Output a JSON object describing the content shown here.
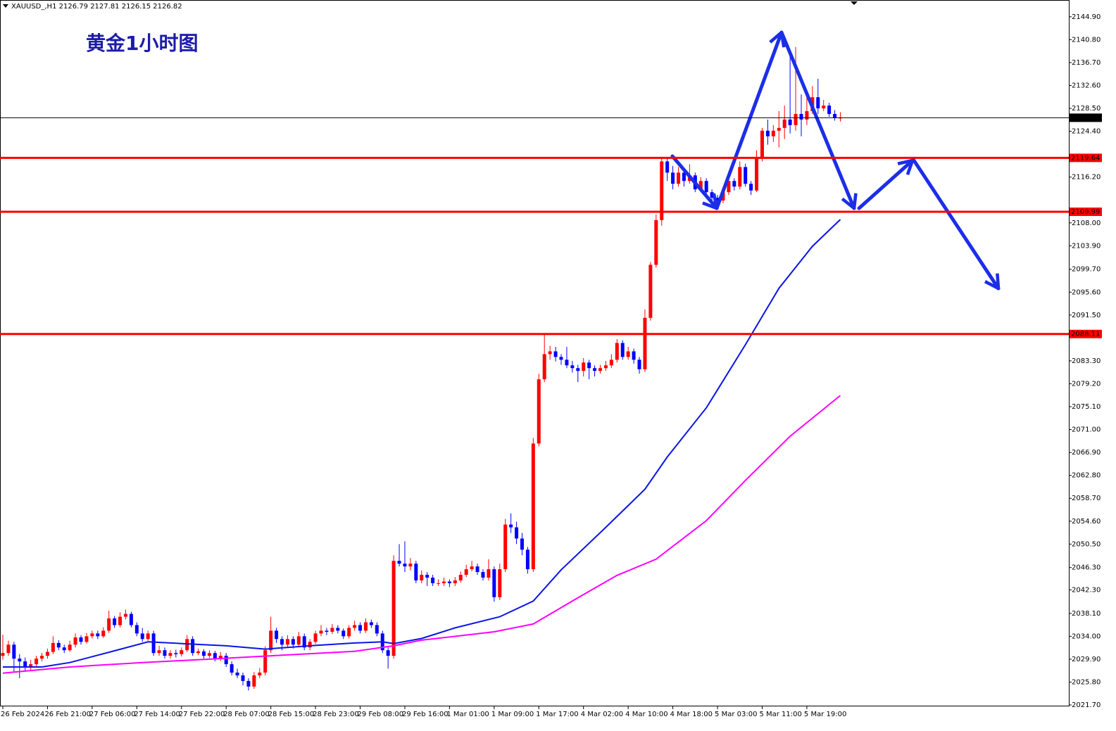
{
  "chart_data": {
    "type": "candlestick",
    "symbol": "XAUUSD_,H1",
    "title": "黄金1小时图",
    "up_color": "#ff0000",
    "down_color": "#0000ff",
    "grid": false,
    "ylim": [
      2021.45,
      2147.9
    ],
    "yticks": [
      {
        "value": 2144.9,
        "label": "2144.90"
      },
      {
        "value": 2140.8,
        "label": "2140.80"
      },
      {
        "value": 2136.7,
        "label": "2136.70"
      },
      {
        "value": 2132.6,
        "label": "2132.60"
      },
      {
        "value": 2128.5,
        "label": "2128.50"
      },
      {
        "value": 2124.4,
        "label": "2124.40"
      },
      {
        "value": 2116.2,
        "label": "2116.20"
      },
      {
        "value": 2108.0,
        "label": "2108.00"
      },
      {
        "value": 2103.9,
        "label": "2103.90"
      },
      {
        "value": 2099.7,
        "label": "2099.70"
      },
      {
        "value": 2095.6,
        "label": "2095.60"
      },
      {
        "value": 2091.5,
        "label": "2091.50"
      },
      {
        "value": 2083.3,
        "label": "2083.30"
      },
      {
        "value": 2079.2,
        "label": "2079.20"
      },
      {
        "value": 2075.1,
        "label": "2075.10"
      },
      {
        "value": 2071.0,
        "label": "2071.00"
      },
      {
        "value": 2066.9,
        "label": "2066.90"
      },
      {
        "value": 2062.8,
        "label": "2062.80"
      },
      {
        "value": 2058.7,
        "label": "2058.70"
      },
      {
        "value": 2054.6,
        "label": "2054.60"
      },
      {
        "value": 2050.5,
        "label": "2050.50"
      },
      {
        "value": 2046.3,
        "label": "2046.30"
      },
      {
        "value": 2042.3,
        "label": "2042.30"
      },
      {
        "value": 2038.1,
        "label": "2038.10"
      },
      {
        "value": 2034.0,
        "label": "2034.00"
      },
      {
        "value": 2029.9,
        "label": "2029.90"
      },
      {
        "value": 2025.8,
        "label": "2025.80"
      },
      {
        "value": 2021.7,
        "label": "2021.70"
      }
    ],
    "hlines": [
      {
        "value": 2126.82,
        "color": "#000000"
      },
      {
        "value": 2119.64,
        "color": "#ff0000"
      },
      {
        "value": 2109.99,
        "color": "#ff0000"
      },
      {
        "value": 2088.11,
        "color": "#ff0000"
      }
    ],
    "categories": [
      "26 Feb 2024",
      null,
      null,
      null,
      null,
      null,
      null,
      null,
      "26 Feb 21:00",
      null,
      null,
      null,
      null,
      null,
      null,
      null,
      "27 Feb 06:00",
      null,
      null,
      null,
      null,
      null,
      null,
      null,
      "27 Feb 14:00",
      null,
      null,
      null,
      null,
      null,
      null,
      null,
      "27 Feb 22:00",
      null,
      null,
      null,
      null,
      null,
      null,
      null,
      "28 Feb 07:00",
      null,
      null,
      null,
      null,
      null,
      null,
      null,
      "28 Feb 15:00",
      null,
      null,
      null,
      null,
      null,
      null,
      null,
      "28 Feb 23:00",
      null,
      null,
      null,
      null,
      null,
      null,
      null,
      "29 Feb 08:00",
      null,
      null,
      null,
      null,
      null,
      null,
      null,
      "29 Feb 16:00",
      null,
      null,
      null,
      null,
      null,
      null,
      null,
      "1 Mar 01:00",
      null,
      null,
      null,
      null,
      null,
      null,
      null,
      "1 Mar 09:00",
      null,
      null,
      null,
      null,
      null,
      null,
      null,
      "1 Mar 17:00",
      null,
      null,
      null,
      null,
      null,
      null,
      null,
      "4 Mar 02:00",
      null,
      null,
      null,
      null,
      null,
      null,
      null,
      "4 Mar 10:00",
      null,
      null,
      null,
      null,
      null,
      null,
      null,
      "4 Mar 18:00",
      null,
      null,
      null,
      null,
      null,
      null,
      null,
      "5 Mar 03:00",
      null,
      null,
      null,
      null,
      null,
      null,
      null,
      "5 Mar 11:00",
      null,
      null,
      null,
      null,
      null,
      null,
      null,
      "5 Mar 19:00",
      null,
      null,
      null,
      null,
      null,
      null
    ],
    "ohlc": [
      [
        2030.5,
        2034.3,
        2029.8,
        2031.0
      ],
      [
        2031.0,
        2033.2,
        2030.5,
        2032.5
      ],
      [
        2032.5,
        2033.0,
        2027.5,
        2030.0
      ],
      [
        2030.0,
        2030.8,
        2026.5,
        2029.5
      ],
      [
        2029.5,
        2030.2,
        2027.8,
        2028.5
      ],
      [
        2028.5,
        2029.8,
        2028.0,
        2029.0
      ],
      [
        2029.0,
        2030.5,
        2028.6,
        2030.0
      ],
      [
        2030.0,
        2031.0,
        2029.5,
        2030.5
      ],
      [
        2030.5,
        2031.8,
        2030.0,
        2031.2
      ],
      [
        2031.2,
        2034.0,
        2030.8,
        2032.8
      ],
      [
        2032.8,
        2033.3,
        2031.5,
        2032.0
      ],
      [
        2032.0,
        2032.5,
        2031.0,
        2031.5
      ],
      [
        2031.5,
        2033.2,
        2031.2,
        2032.5
      ],
      [
        2032.5,
        2034.5,
        2032.0,
        2033.8
      ],
      [
        2033.8,
        2034.2,
        2032.5,
        2033.0
      ],
      [
        2033.0,
        2034.6,
        2032.7,
        2034.0
      ],
      [
        2034.0,
        2035.0,
        2033.6,
        2034.5
      ],
      [
        2034.5,
        2035.0,
        2033.5,
        2034.0
      ],
      [
        2034.0,
        2035.6,
        2033.7,
        2035.0
      ],
      [
        2035.0,
        2038.6,
        2034.6,
        2037.2
      ],
      [
        2037.2,
        2037.6,
        2035.5,
        2036.0
      ],
      [
        2036.0,
        2038.3,
        2035.6,
        2037.5
      ],
      [
        2037.5,
        2038.8,
        2037.0,
        2038.0
      ],
      [
        2038.0,
        2038.4,
        2035.6,
        2036.0
      ],
      [
        2036.0,
        2036.5,
        2034.0,
        2034.5
      ],
      [
        2034.5,
        2035.5,
        2033.0,
        2033.5
      ],
      [
        2033.5,
        2035.0,
        2033.2,
        2034.5
      ],
      [
        2034.5,
        2035.0,
        2030.5,
        2031.0
      ],
      [
        2031.0,
        2032.3,
        2030.5,
        2031.5
      ],
      [
        2031.5,
        2032.0,
        2030.0,
        2030.5
      ],
      [
        2030.5,
        2031.5,
        2030.0,
        2031.0
      ],
      [
        2031.0,
        2031.6,
        2030.2,
        2030.8
      ],
      [
        2030.8,
        2032.0,
        2030.4,
        2031.5
      ],
      [
        2031.5,
        2034.2,
        2031.2,
        2033.5
      ],
      [
        2033.5,
        2034.0,
        2030.5,
        2031.0
      ],
      [
        2031.0,
        2031.8,
        2030.6,
        2031.3
      ],
      [
        2031.3,
        2031.7,
        2030.0,
        2030.5
      ],
      [
        2030.5,
        2031.5,
        2030.1,
        2031.0
      ],
      [
        2031.0,
        2031.4,
        2029.5,
        2030.0
      ],
      [
        2030.0,
        2031.2,
        2029.6,
        2030.5
      ],
      [
        2030.5,
        2031.0,
        2028.5,
        2029.0
      ],
      [
        2029.0,
        2029.5,
        2027.0,
        2027.5
      ],
      [
        2027.5,
        2028.2,
        2026.5,
        2027.0
      ],
      [
        2027.0,
        2027.5,
        2025.2,
        2026.0
      ],
      [
        2026.0,
        2026.5,
        2024.3,
        2025.0
      ],
      [
        2025.0,
        2027.6,
        2024.6,
        2027.0
      ],
      [
        2027.0,
        2028.3,
        2026.5,
        2027.5
      ],
      [
        2027.5,
        2032.2,
        2027.0,
        2031.5
      ],
      [
        2031.5,
        2037.5,
        2031.0,
        2035.0
      ],
      [
        2035.0,
        2035.5,
        2032.8,
        2033.5
      ],
      [
        2033.5,
        2034.0,
        2031.5,
        2032.5
      ],
      [
        2032.5,
        2034.2,
        2032.0,
        2033.5
      ],
      [
        2033.5,
        2034.0,
        2031.8,
        2032.5
      ],
      [
        2032.5,
        2034.8,
        2032.0,
        2034.0
      ],
      [
        2034.0,
        2034.5,
        2031.5,
        2032.0
      ],
      [
        2032.0,
        2033.5,
        2031.5,
        2033.0
      ],
      [
        2033.0,
        2035.0,
        2032.6,
        2034.5
      ],
      [
        2034.5,
        2036.0,
        2034.0,
        2035.0
      ],
      [
        2035.0,
        2035.5,
        2034.2,
        2034.8
      ],
      [
        2034.8,
        2036.2,
        2034.4,
        2035.5
      ],
      [
        2035.5,
        2036.0,
        2034.5,
        2035.0
      ],
      [
        2035.0,
        2035.4,
        2033.5,
        2034.0
      ],
      [
        2034.0,
        2036.0,
        2033.6,
        2035.5
      ],
      [
        2035.5,
        2036.8,
        2035.0,
        2036.0
      ],
      [
        2036.0,
        2036.5,
        2034.5,
        2035.0
      ],
      [
        2035.0,
        2037.2,
        2034.6,
        2036.5
      ],
      [
        2036.5,
        2037.0,
        2035.5,
        2036.0
      ],
      [
        2036.0,
        2036.5,
        2034.0,
        2034.5
      ],
      [
        2034.5,
        2035.0,
        2031.0,
        2031.5
      ],
      [
        2031.5,
        2032.0,
        2028.2,
        2030.5
      ],
      [
        2030.5,
        2048.5,
        2030.0,
        2047.5
      ],
      [
        2047.5,
        2050.5,
        2046.5,
        2047.0
      ],
      [
        2047.0,
        2051.0,
        2045.5,
        2046.5
      ],
      [
        2046.5,
        2048.0,
        2045.8,
        2047.0
      ],
      [
        2047.0,
        2047.5,
        2043.5,
        2044.0
      ],
      [
        2044.0,
        2045.8,
        2043.5,
        2045.0
      ],
      [
        2045.0,
        2045.5,
        2043.0,
        2044.5
      ],
      [
        2044.5,
        2045.0,
        2043.0,
        2043.5
      ],
      [
        2043.5,
        2044.2,
        2043.0,
        2043.5
      ],
      [
        2043.5,
        2044.5,
        2043.0,
        2043.8
      ],
      [
        2043.8,
        2044.2,
        2042.8,
        2043.5
      ],
      [
        2043.5,
        2044.6,
        2043.0,
        2044.0
      ],
      [
        2044.0,
        2045.6,
        2043.6,
        2045.0
      ],
      [
        2045.0,
        2046.8,
        2044.6,
        2046.0
      ],
      [
        2046.0,
        2047.5,
        2045.6,
        2046.5
      ],
      [
        2046.5,
        2047.0,
        2045.0,
        2045.5
      ],
      [
        2045.5,
        2046.0,
        2044.0,
        2044.5
      ],
      [
        2044.5,
        2047.8,
        2044.0,
        2046.0
      ],
      [
        2046.0,
        2046.5,
        2040.2,
        2041.0
      ],
      [
        2041.0,
        2047.0,
        2040.5,
        2046.0
      ],
      [
        2046.0,
        2055.0,
        2045.5,
        2054.0
      ],
      [
        2054.0,
        2056.0,
        2052.5,
        2053.5
      ],
      [
        2053.5,
        2054.5,
        2050.5,
        2051.5
      ],
      [
        2051.5,
        2052.5,
        2048.5,
        2049.5
      ],
      [
        2049.5,
        2050.0,
        2045.2,
        2046.0
      ],
      [
        2046.0,
        2069.5,
        2045.5,
        2068.5
      ],
      [
        2068.5,
        2081.0,
        2068.0,
        2080.0
      ],
      [
        2080.0,
        2088.0,
        2079.5,
        2084.5
      ],
      [
        2084.5,
        2086.0,
        2083.5,
        2085.0
      ],
      [
        2085.0,
        2085.8,
        2083.2,
        2084.0
      ],
      [
        2084.0,
        2084.5,
        2082.6,
        2083.5
      ],
      [
        2083.5,
        2085.8,
        2082.0,
        2082.5
      ],
      [
        2082.5,
        2083.3,
        2081.2,
        2082.0
      ],
      [
        2082.0,
        2082.6,
        2079.5,
        2081.5
      ],
      [
        2081.5,
        2083.8,
        2080.5,
        2083.0
      ],
      [
        2083.0,
        2083.5,
        2080.0,
        2082.0
      ],
      [
        2082.0,
        2082.5,
        2080.5,
        2081.5
      ],
      [
        2081.5,
        2082.6,
        2081.0,
        2082.0
      ],
      [
        2082.0,
        2083.3,
        2081.5,
        2082.5
      ],
      [
        2082.5,
        2084.5,
        2082.0,
        2083.5
      ],
      [
        2083.5,
        2087.2,
        2083.0,
        2086.5
      ],
      [
        2086.5,
        2087.0,
        2083.5,
        2084.0
      ],
      [
        2084.0,
        2085.8,
        2083.5,
        2085.0
      ],
      [
        2085.0,
        2085.5,
        2082.8,
        2083.5
      ],
      [
        2083.5,
        2084.0,
        2081.0,
        2081.8
      ],
      [
        2081.8,
        2092.5,
        2081.3,
        2091.0
      ],
      [
        2091.0,
        2101.0,
        2090.5,
        2100.5
      ],
      [
        2100.5,
        2109.5,
        2100.0,
        2108.5
      ],
      [
        2108.5,
        2119.8,
        2107.5,
        2119.0
      ],
      [
        2119.0,
        2119.5,
        2115.5,
        2117.0
      ],
      [
        2117.0,
        2118.2,
        2114.0,
        2115.0
      ],
      [
        2115.0,
        2118.0,
        2114.5,
        2117.0
      ],
      [
        2117.0,
        2117.6,
        2114.5,
        2115.5
      ],
      [
        2115.5,
        2118.5,
        2115.0,
        2116.5
      ],
      [
        2116.5,
        2117.0,
        2113.5,
        2114.0
      ],
      [
        2114.0,
        2116.2,
        2113.5,
        2115.5
      ],
      [
        2115.5,
        2116.0,
        2112.8,
        2113.5
      ],
      [
        2113.5,
        2114.0,
        2111.0,
        2112.5
      ],
      [
        2112.5,
        2113.0,
        2110.8,
        2112.0
      ],
      [
        2112.0,
        2114.3,
        2111.5,
        2113.5
      ],
      [
        2113.5,
        2116.5,
        2113.0,
        2115.5
      ],
      [
        2115.5,
        2116.0,
        2113.8,
        2114.5
      ],
      [
        2114.5,
        2119.0,
        2114.0,
        2118.0
      ],
      [
        2118.0,
        2118.6,
        2114.5,
        2115.0
      ],
      [
        2115.0,
        2115.5,
        2113.0,
        2113.8
      ],
      [
        2113.8,
        2121.0,
        2113.5,
        2119.5
      ],
      [
        2119.5,
        2125.0,
        2119.0,
        2124.5
      ],
      [
        2124.5,
        2126.5,
        2122.0,
        2123.5
      ],
      [
        2123.5,
        2125.5,
        2122.5,
        2124.5
      ],
      [
        2124.5,
        2128.0,
        2121.5,
        2125.0
      ],
      [
        2125.0,
        2129.0,
        2123.0,
        2126.5
      ],
      [
        2126.5,
        2138.5,
        2124.0,
        2125.5
      ],
      [
        2125.5,
        2139.5,
        2124.5,
        2127.5
      ],
      [
        2127.5,
        2131.0,
        2123.5,
        2126.5
      ],
      [
        2126.5,
        2131.5,
        2125.5,
        2128.0
      ],
      [
        2128.0,
        2132.5,
        2127.5,
        2130.5
      ],
      [
        2130.5,
        2133.8,
        2127.5,
        2128.5
      ],
      [
        2128.5,
        2130.0,
        2128.0,
        2129.0
      ],
      [
        2129.0,
        2129.5,
        2127.0,
        2127.5
      ],
      [
        2127.5,
        2128.2,
        2126.3,
        2126.79
      ],
      [
        2126.79,
        2127.81,
        2126.15,
        2126.82
      ]
    ],
    "series": [
      {
        "color": "#0a14e6",
        "x": [
          0,
          7,
          12,
          20,
          26,
          32,
          40,
          47,
          55,
          63,
          68,
          70,
          75,
          81,
          89,
          95,
          100,
          108,
          115,
          119,
          126,
          133,
          139,
          145,
          150
        ],
        "values": [
          2028.5,
          2028.5,
          2029.3,
          2031.4,
          2033.0,
          2032.7,
          2032.3,
          2031.7,
          2032.3,
          2032.8,
          2033.0,
          2032.7,
          2033.6,
          2035.5,
          2037.5,
          2040.3,
          2045.9,
          2053.5,
          2060.3,
          2066.1,
          2074.9,
          2086.2,
          2096.3,
          2103.8,
          2108.6
        ]
      },
      {
        "color": "#ff00ff",
        "x": [
          0,
          12,
          25,
          37,
          50,
          63,
          70,
          75,
          88,
          95,
          103,
          110,
          117,
          126,
          133,
          141,
          150
        ],
        "values": [
          2027.4,
          2028.5,
          2029.3,
          2029.9,
          2030.6,
          2031.3,
          2032.3,
          2033.3,
          2034.8,
          2036.2,
          2040.9,
          2044.9,
          2047.8,
          2054.7,
          2061.9,
          2069.8,
          2077.1
        ]
      }
    ]
  }
}
